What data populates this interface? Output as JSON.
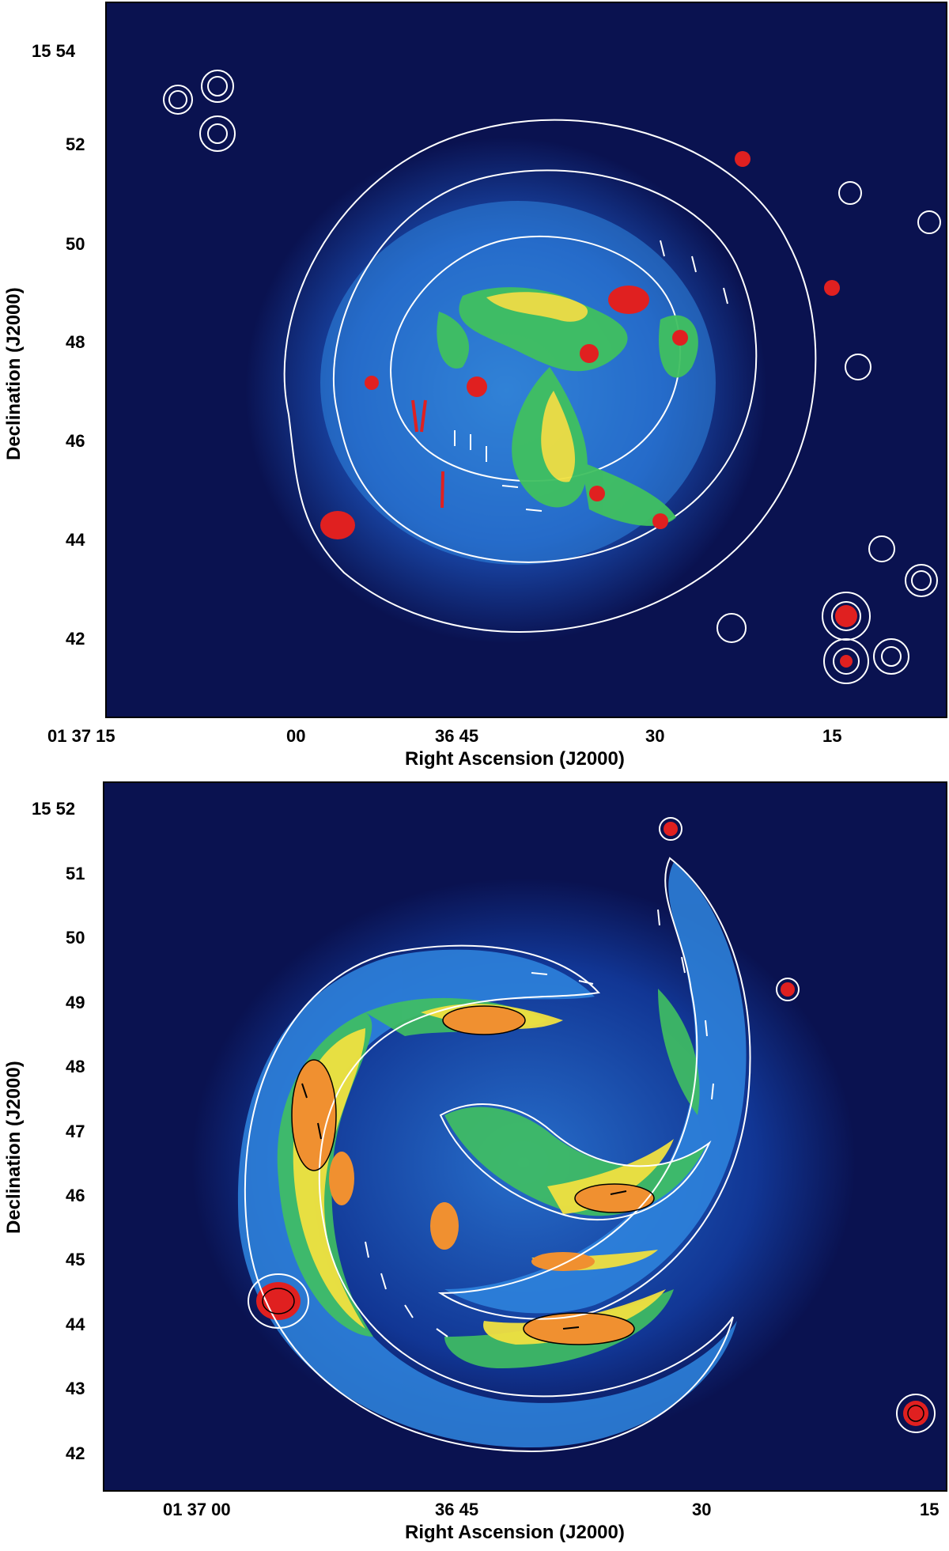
{
  "panels": [
    {
      "xlabel": "Right Ascension (J2000)",
      "ylabel": "Declination (J2000)",
      "x_ticks": [
        "01 37 15",
        "00",
        "36 45",
        "30",
        "15"
      ],
      "y_ticks": [
        "15 54",
        "52",
        "50",
        "48",
        "46",
        "44",
        "42"
      ]
    },
    {
      "xlabel": "Right Ascension (J2000)",
      "ylabel": "Declination (J2000)",
      "x_ticks": [
        "01 37 00",
        "36 45",
        "30",
        "15"
      ],
      "y_ticks": [
        "15 52",
        "51",
        "50",
        "49",
        "48",
        "47",
        "46",
        "45",
        "44",
        "43",
        "42"
      ]
    }
  ],
  "colors": {
    "background": "#0a1250",
    "contour": "#ffffff",
    "emission_low": "#3a8fe0",
    "emission_mid": "#40c060",
    "emission_high": "#f0e040",
    "peak": "#e02020"
  }
}
